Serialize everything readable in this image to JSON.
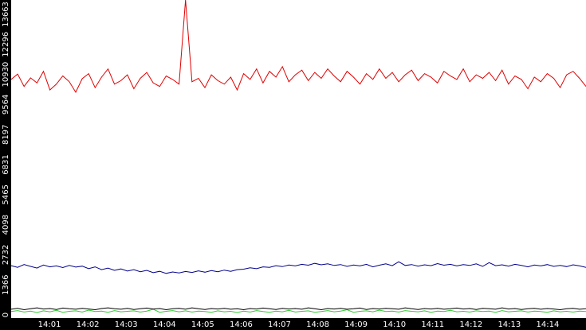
{
  "chart_data": {
    "type": "line",
    "ylim": [
      0,
      13663
    ],
    "yticks": [
      0,
      1366,
      2732,
      4098,
      5465,
      6831,
      8197,
      9564,
      10930,
      12296,
      13663
    ],
    "xticks": [
      "14:01",
      "14:02",
      "14:03",
      "14:04",
      "14:05",
      "14:06",
      "14:07",
      "14:08",
      "14:09",
      "14:10",
      "14:11",
      "14:12",
      "14:13",
      "14:14"
    ],
    "grid": false,
    "series": [
      {
        "color": "#e00000",
        "values": [
          10250,
          10480,
          9950,
          10320,
          10100,
          10600,
          9800,
          10050,
          10400,
          10150,
          9700,
          10280,
          10500,
          9900,
          10350,
          10700,
          10050,
          10200,
          10450,
          9850,
          10300,
          10550,
          10100,
          9950,
          10400,
          10250,
          10050,
          13663,
          10150,
          10300,
          9900,
          10450,
          10200,
          10050,
          10350,
          9800,
          10500,
          10250,
          10700,
          10100,
          10600,
          10350,
          10800,
          10150,
          10450,
          10650,
          10200,
          10550,
          10300,
          10700,
          10400,
          10150,
          10600,
          10350,
          10050,
          10500,
          10250,
          10700,
          10300,
          10550,
          10150,
          10450,
          10650,
          10200,
          10500,
          10350,
          10100,
          10600,
          10400,
          10250,
          10700,
          10150,
          10450,
          10300,
          10550,
          10200,
          10650,
          10050,
          10400,
          10250,
          9850,
          10350,
          10150,
          10500,
          10300,
          9900,
          10450,
          10600,
          10300,
          9950
        ]
      },
      {
        "color": "#00008b",
        "values": [
          2250,
          2180,
          2300,
          2220,
          2150,
          2280,
          2200,
          2240,
          2170,
          2260,
          2190,
          2230,
          2120,
          2200,
          2080,
          2150,
          2050,
          2110,
          2020,
          2080,
          1990,
          2050,
          1950,
          2010,
          1920,
          1980,
          1940,
          2000,
          1960,
          2030,
          1970,
          2040,
          1990,
          2060,
          2010,
          2080,
          2100,
          2160,
          2120,
          2200,
          2180,
          2250,
          2210,
          2280,
          2240,
          2310,
          2270,
          2350,
          2290,
          2330,
          2260,
          2300,
          2220,
          2280,
          2240,
          2310,
          2200,
          2270,
          2330,
          2250,
          2420,
          2260,
          2300,
          2230,
          2290,
          2250,
          2340,
          2270,
          2310,
          2240,
          2300,
          2260,
          2330,
          2220,
          2380,
          2250,
          2290,
          2230,
          2310,
          2260,
          2200,
          2280,
          2240,
          2300,
          2220,
          2260,
          2210,
          2290,
          2240,
          2180
        ]
      },
      {
        "color": "#33cc33",
        "values": [
          280,
          320,
          260,
          300,
          240,
          310,
          270,
          330,
          250,
          290,
          310,
          260,
          340,
          280,
          300,
          250,
          320,
          270,
          290,
          310,
          260,
          300,
          380,
          250,
          290,
          320,
          270,
          310,
          260,
          300,
          280,
          250,
          310,
          270,
          290,
          240,
          300,
          260,
          320,
          280,
          250,
          300,
          270,
          330,
          260,
          290,
          310,
          250,
          280,
          320,
          270,
          300,
          360,
          250,
          290,
          310,
          270,
          340,
          280,
          300,
          260,
          320,
          290,
          270,
          310,
          250,
          300,
          280,
          330,
          270,
          290,
          260,
          310,
          280,
          300,
          250,
          320,
          270,
          290,
          310,
          260,
          300,
          280,
          250,
          310,
          270,
          290,
          260,
          300,
          280
        ]
      },
      {
        "color": "#000000",
        "values": [
          380,
          420,
          360,
          400,
          440,
          390,
          410,
          370,
          430,
          400,
          380,
          420,
          390,
          360,
          410,
          440,
          400,
          380,
          420,
          370,
          400,
          430,
          390,
          410,
          360,
          400,
          420,
          380,
          440,
          400,
          370,
          410,
          390,
          420,
          380,
          400,
          360,
          410,
          390,
          430,
          400,
          370,
          420,
          390,
          410,
          380,
          440,
          400,
          360,
          410,
          390,
          420,
          380,
          400,
          430,
          370,
          410,
          390,
          420,
          400,
          380,
          440,
          400,
          370,
          410,
          390,
          420,
          380,
          400,
          430,
          390,
          410,
          370,
          420,
          400,
          380,
          440,
          390,
          410,
          370,
          400,
          420,
          380,
          410,
          390,
          360,
          400,
          420,
          380,
          400
        ]
      }
    ]
  }
}
